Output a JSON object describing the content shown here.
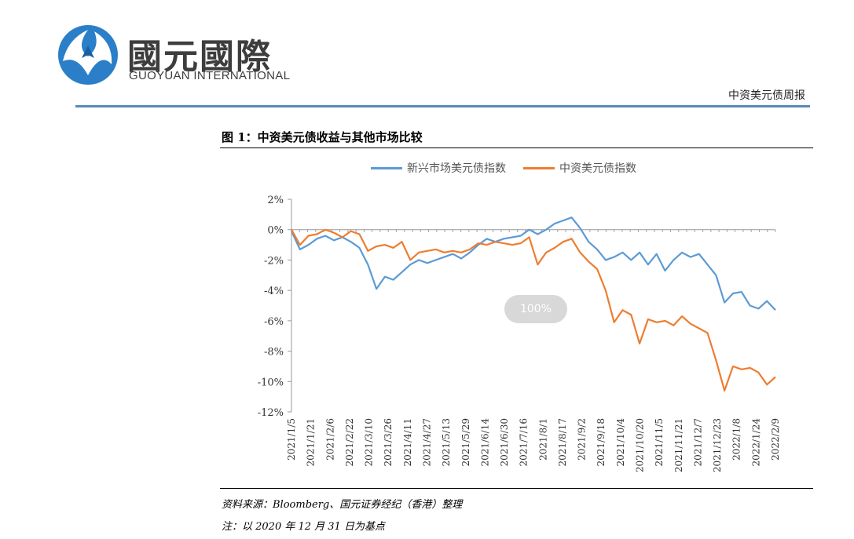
{
  "header": {
    "logo_cn": "國元國際",
    "logo_en": "GUOYUAN INTERNATIONAL",
    "report_name": "中资美元债周报",
    "accent_color": "#5b89b8"
  },
  "figure": {
    "title": "图 1：中资美元债收益与其他市场比较",
    "source": "资料来源：Bloomberg、国元证券经纪（香港）整理",
    "note": "注：以 2020 年 12 月 31 日为基点",
    "zoom_badge": "100%"
  },
  "chart_data": {
    "type": "line",
    "title": "",
    "xlabel": "",
    "ylabel": "",
    "ylim": [
      -12,
      2
    ],
    "yticks": [
      2,
      0,
      -2,
      -4,
      -6,
      -8,
      -10,
      -12
    ],
    "ytick_labels": [
      "2%",
      "0%",
      "-2%",
      "-4%",
      "-6%",
      "-8%",
      "-10%",
      "-12%"
    ],
    "legend_position": "top-center",
    "x_tick_labels": [
      "2021/1/5",
      "2021/1/21",
      "2021/2/6",
      "2021/2/22",
      "2021/3/10",
      "2021/3/26",
      "2021/4/11",
      "2021/4/27",
      "2021/5/13",
      "2021/5/29",
      "2021/6/14",
      "2021/6/30",
      "2021/7/16",
      "2021/8/1",
      "2021/8/17",
      "2021/9/2",
      "2021/9/18",
      "2021/10/4",
      "2021/10/20",
      "2021/11/5",
      "2021/11/21",
      "2021/12/7",
      "2021/12/23",
      "2022/1/8",
      "2022/1/24",
      "2022/2/9"
    ],
    "series": [
      {
        "name": "新兴市场美元债指数",
        "color": "#5b9bd5",
        "values": [
          -0.1,
          -1.3,
          -1.0,
          -0.6,
          -0.4,
          -0.7,
          -0.5,
          -0.8,
          -1.2,
          -2.3,
          -3.9,
          -3.1,
          -3.3,
          -2.8,
          -2.3,
          -2.0,
          -2.2,
          -2.0,
          -1.8,
          -1.6,
          -1.9,
          -1.5,
          -1.0,
          -0.6,
          -0.8,
          -0.6,
          -0.5,
          -0.4,
          0.0,
          -0.3,
          0.0,
          0.4,
          0.6,
          0.8,
          0.1,
          -0.8,
          -1.3,
          -2.0,
          -1.8,
          -1.5,
          -2.0,
          -1.5,
          -2.3,
          -1.6,
          -2.7,
          -2.0,
          -1.5,
          -1.8,
          -1.6,
          -2.3,
          -3.0,
          -4.8,
          -4.2,
          -4.1,
          -5.0,
          -5.2,
          -4.7,
          -5.3
        ]
      },
      {
        "name": "中资美元债指数",
        "color": "#ed7d31",
        "values": [
          0.0,
          -1.0,
          -0.4,
          -0.3,
          0.0,
          -0.2,
          -0.5,
          -0.1,
          -0.3,
          -1.4,
          -1.1,
          -1.0,
          -1.2,
          -0.8,
          -2.0,
          -1.5,
          -1.4,
          -1.3,
          -1.5,
          -1.4,
          -1.5,
          -1.3,
          -0.9,
          -1.0,
          -0.8,
          -0.9,
          -1.0,
          -0.9,
          -0.5,
          -2.3,
          -1.5,
          -1.2,
          -0.8,
          -0.6,
          -1.5,
          -2.1,
          -2.6,
          -4.0,
          -6.1,
          -5.3,
          -5.6,
          -7.5,
          -5.9,
          -6.1,
          -6.0,
          -6.3,
          -5.7,
          -6.2,
          -6.5,
          -6.8,
          -8.6,
          -10.6,
          -9.0,
          -9.2,
          -9.1,
          -9.4,
          -10.2,
          -9.7
        ]
      }
    ]
  }
}
